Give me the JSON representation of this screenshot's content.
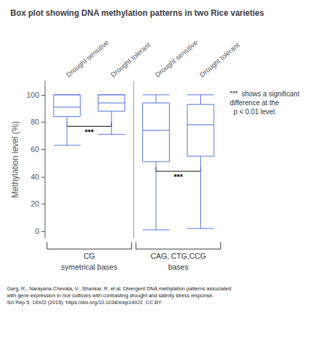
{
  "chart_data": {
    "type": "boxplot",
    "title": "Box plot showing DNA methylation patterns in two Rice varieties",
    "ylabel": "Methylation level (%)",
    "ylim": [
      -5,
      110
    ],
    "yticks": [
      0,
      20,
      40,
      60,
      80,
      100
    ],
    "grid": false,
    "groups": [
      {
        "label": "CG",
        "sublabel": "symetrical bases",
        "annotation": "***",
        "categories": [
          "Drought sensitive",
          "Drought tolerant"
        ],
        "values": [
          [
            63,
            84,
            91,
            100,
            100
          ],
          [
            71,
            88,
            94,
            100,
            100
          ]
        ]
      },
      {
        "label": "CAG, CTG,CCG",
        "sublabel": "bases",
        "annotation": "***",
        "categories": [
          "Drought sensitive",
          "Drought tolerant"
        ],
        "values": [
          [
            1,
            51,
            74,
            94,
            100
          ],
          [
            2,
            55,
            78,
            93,
            100
          ]
        ]
      }
    ],
    "note": "***  shows a significant\ndifference at the\n  p < 0.01 level.",
    "source": "Garg, R., Narayana Chevala, V., Shankar, R. et al. Divergent DNA methylation patterns associated\nwith gene expression in rice cultivars with contrasting drought and salinity stress response.\nSci Rep 5, 14922 (2015). https://doi.org/10.1038/srep14922  CC BY"
  }
}
